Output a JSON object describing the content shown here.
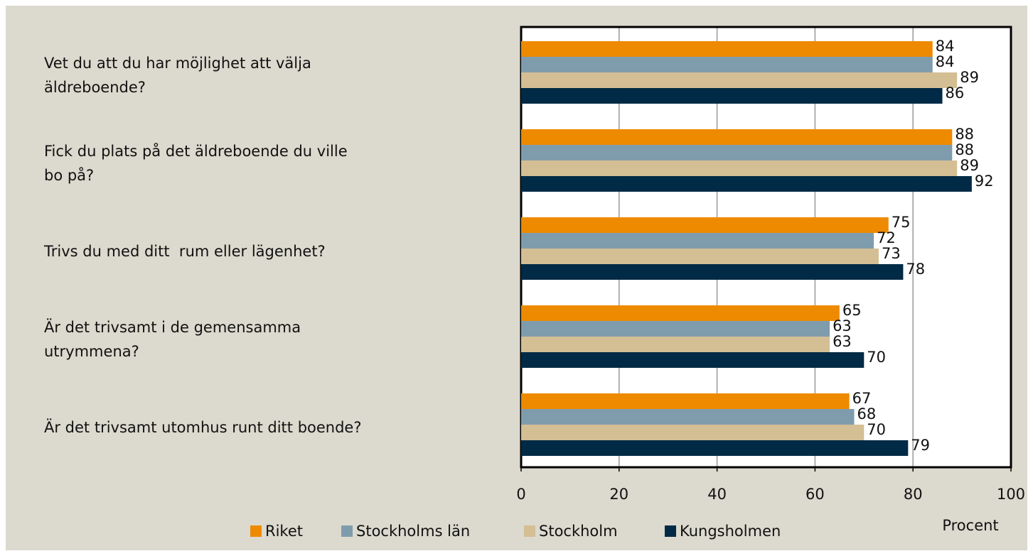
{
  "chart_data": {
    "type": "bar",
    "orientation": "horizontal",
    "categories": [
      "Vet du att du har möjlighet att välja\näldreboende?",
      "Fick du plats på det äldreboende du ville\nbo på?",
      "Trivs du med ditt  rum eller lägenhet?",
      "Är det trivsamt i de gemensamma\nutrymmena?",
      "Är det trivsamt utomhus runt ditt boende?"
    ],
    "series": [
      {
        "name": "Riket",
        "color": "#ee8a00",
        "values": [
          84,
          88,
          75,
          65,
          67
        ]
      },
      {
        "name": "Stockholms län",
        "color": "#7f9cad",
        "values": [
          84,
          88,
          72,
          63,
          68
        ]
      },
      {
        "name": "Stockholm",
        "color": "#d4be94",
        "values": [
          89,
          89,
          73,
          63,
          70
        ]
      },
      {
        "name": "Kungsholmen",
        "color": "#002a45",
        "values": [
          86,
          92,
          78,
          70,
          79
        ]
      }
    ],
    "xlabel": "Procent",
    "xlim": [
      0,
      100
    ],
    "xticks": [
      0,
      20,
      40,
      60,
      80,
      100
    ],
    "grid": true,
    "legend": "bottom"
  }
}
